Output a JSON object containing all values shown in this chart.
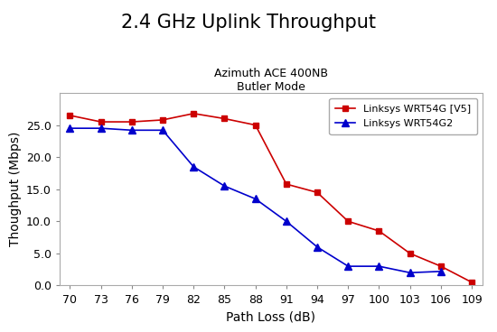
{
  "title": "2.4 GHz Uplink Throughput",
  "subtitle1": "Azimuth ACE 400NB",
  "subtitle2": "Butler Mode",
  "xlabel": "Path Loss (dB)",
  "ylabel": "Thoughput (Mbps)",
  "x_ticks": [
    70,
    73,
    76,
    79,
    82,
    85,
    88,
    91,
    94,
    97,
    100,
    103,
    106,
    109
  ],
  "wrt54g_v5_x": [
    70,
    73,
    76,
    79,
    82,
    85,
    88,
    91,
    94,
    97,
    100,
    103,
    106,
    109
  ],
  "wrt54g_v5_y": [
    26.5,
    25.5,
    25.5,
    25.8,
    26.8,
    26.0,
    25.0,
    15.8,
    14.5,
    10.0,
    8.5,
    5.0,
    3.0,
    0.5
  ],
  "wrt54g2_x": [
    70,
    73,
    76,
    79,
    82,
    85,
    88,
    91,
    94,
    97,
    100,
    103,
    106
  ],
  "wrt54g2_y_full": [
    24.5,
    24.5,
    24.2,
    24.2,
    18.5,
    15.5,
    13.5,
    10.0,
    6.0,
    3.0,
    3.0,
    2.0,
    2.2
  ],
  "wrt54g_v5_color": "#cc0000",
  "wrt54g2_color": "#0000cc",
  "ylim": [
    0.0,
    30.0
  ],
  "yticks": [
    0.0,
    5.0,
    10.0,
    15.0,
    20.0,
    25.0
  ],
  "legend_label_v5": "Linksys WRT54G [V5]",
  "legend_label_g2": "Linksys WRT54G2",
  "bg_color": "#ffffff",
  "grid_color": "#ffffff",
  "title_fontsize": 15,
  "subtitle_fontsize": 9,
  "label_fontsize": 10,
  "tick_fontsize": 9,
  "legend_fontsize": 8
}
